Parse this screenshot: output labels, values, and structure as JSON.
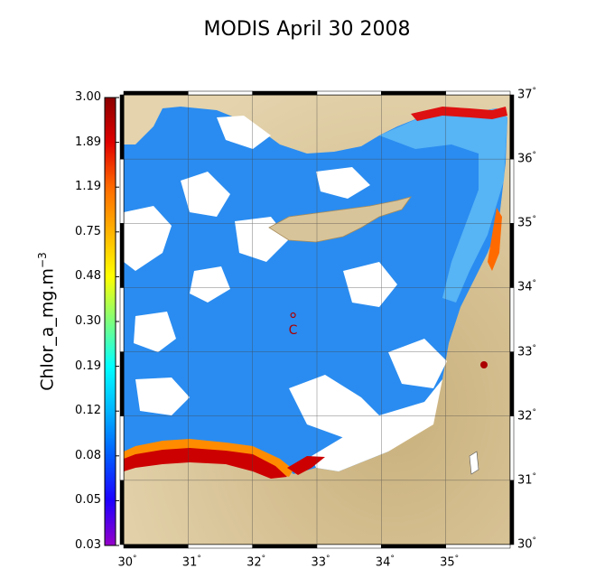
{
  "title": "MODIS April 30 2008",
  "colorbar": {
    "label_main": "Chlor_a_mg.m",
    "label_exp": "−3",
    "ticks": [
      "3.00",
      "1.89",
      "1.19",
      "0.75",
      "0.48",
      "0.30",
      "0.19",
      "0.12",
      "0.08",
      "0.05",
      "0.03"
    ],
    "colors": [
      "#8b0000",
      "#e00000",
      "#ff6a00",
      "#ffb400",
      "#ffff00",
      "#7dff7d",
      "#00ffff",
      "#00b4ff",
      "#005aff",
      "#1e00ff",
      "#9600c8"
    ]
  },
  "map": {
    "lat_ticks": [
      "37",
      "36",
      "35",
      "34",
      "33",
      "32",
      "31",
      "30"
    ],
    "lon_ticks": [
      "30",
      "31",
      "32",
      "33",
      "34",
      "35"
    ],
    "lat_range": [
      30,
      37
    ],
    "lon_range": [
      30,
      36
    ],
    "marker_label": "C",
    "marker_lon": 32.63,
    "marker_lat": 33.57,
    "colors": {
      "land": "#d8c49a",
      "land_dark": "#b79d68",
      "sea": "#2a8cf0",
      "sea_light": "#57b4f5",
      "cloud": "#ffffff",
      "coastal_high": "#cc0000",
      "coastal_mid": "#ff8c00"
    }
  }
}
